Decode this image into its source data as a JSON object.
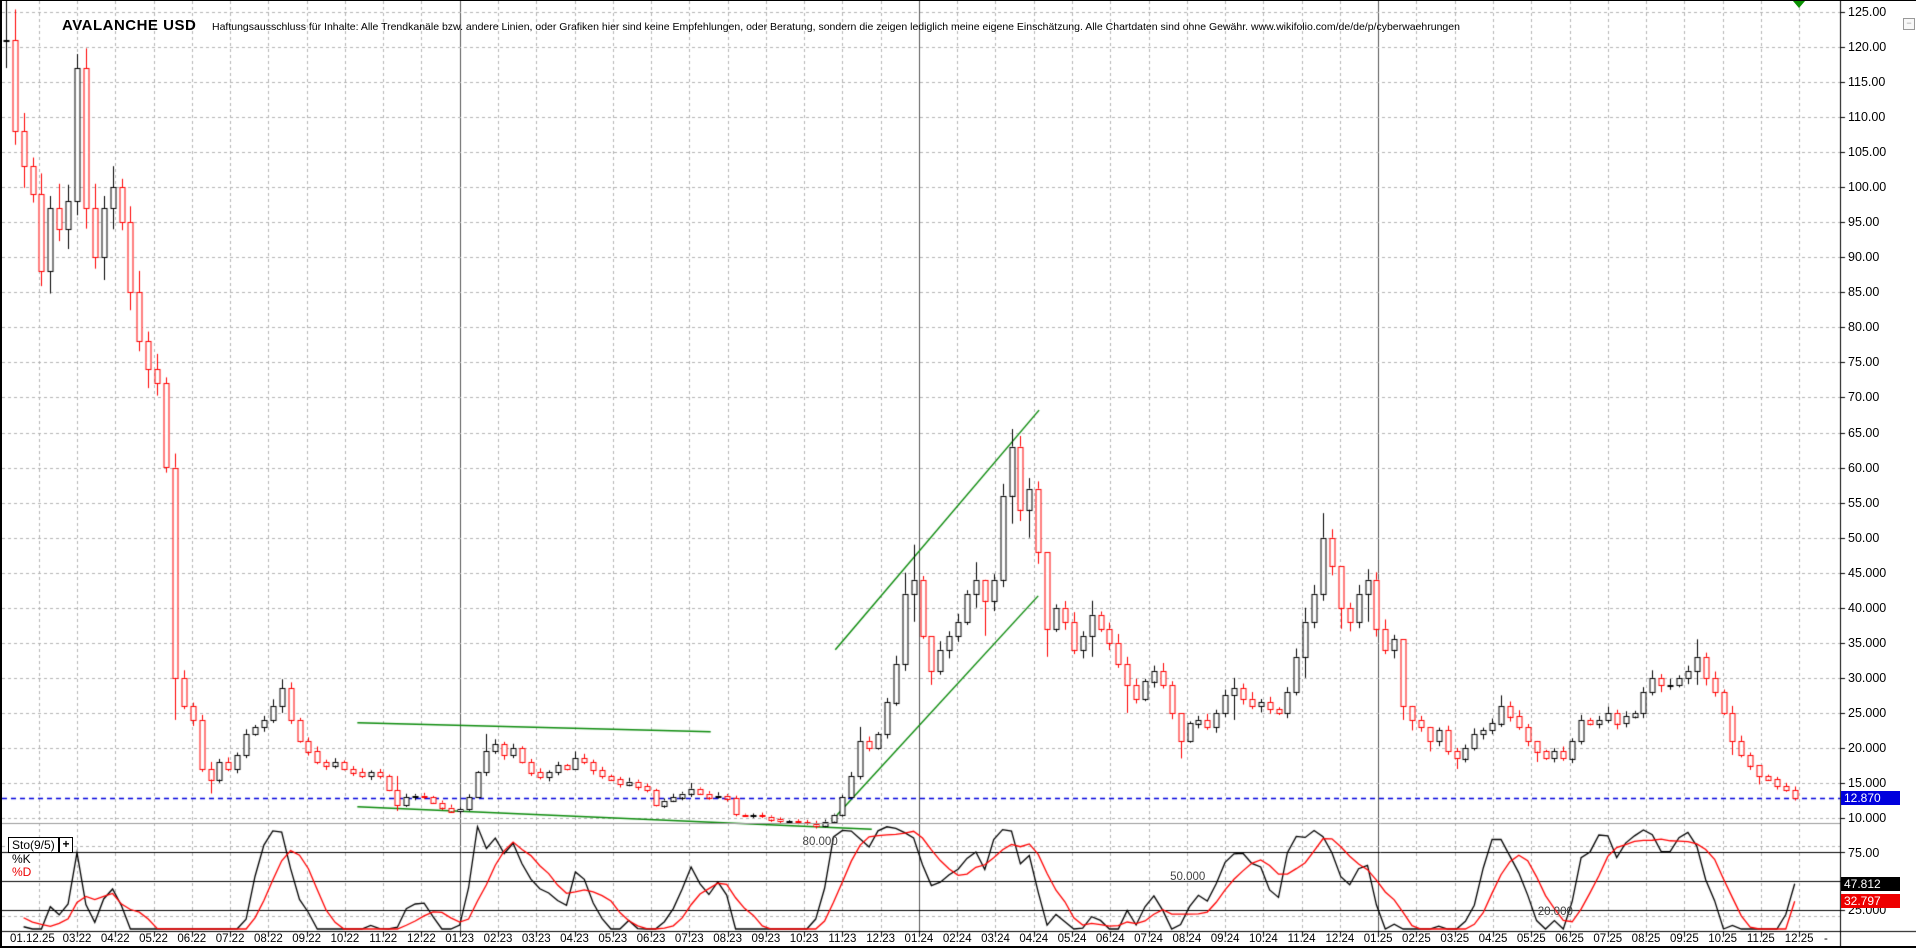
{
  "header": {
    "title": "AVALANCHE USD",
    "disclaimer": "Haftungsausschluss für Inhalte: Alle Trendkanäle bzw. andere Linien, oder Grafiken hier sind keine Empfehlungen, oder Beratung, sondern die zeigen lediglich meine eigene Einschätzung. Alle Chartdaten sind ohne Gewähr.  www.wikifolio.com/de/de/p/cyberwaehrungen"
  },
  "controls": {
    "collapse_button": "−"
  },
  "price_axis": {
    "tick_labels": [
      "125.00",
      "120.00",
      "115.00",
      "110.00",
      "105.00",
      "100.00",
      "95.00",
      "90.00",
      "85.00",
      "80.00",
      "75.00",
      "70.00",
      "65.00",
      "60.00",
      "55.00",
      "50.00",
      "45.000",
      "40.000",
      "35.000",
      "30.000",
      "25.000",
      "20.000",
      "15.000",
      "10.000"
    ],
    "tick_values": [
      125,
      120,
      115,
      110,
      105,
      100,
      95,
      90,
      85,
      80,
      75,
      70,
      65,
      60,
      55,
      50,
      45,
      40,
      35,
      30,
      25,
      20,
      15,
      10
    ],
    "last_price_label": "12.870"
  },
  "x_axis": {
    "first_label": "01.12.25",
    "month_labels": [
      "03.22",
      "04.22",
      "05.22",
      "06.22",
      "07.22",
      "08.22",
      "09.22",
      "10.22",
      "11.22",
      "12.22",
      "01.23",
      "02.23",
      "03.23",
      "04.23",
      "05.23",
      "06.23",
      "07.23",
      "08.23",
      "09.23",
      "10.23",
      "11.23",
      "12.23",
      "01.24",
      "02.24",
      "03.24",
      "04.24",
      "05.24",
      "06.24",
      "07.24",
      "08.24",
      "09.24",
      "10.24",
      "11.24",
      "12.24",
      "01.25",
      "02.25",
      "03.25",
      "04.25",
      "05.25",
      "06.25",
      "07.25",
      "08.25",
      "09.25",
      "10.25",
      "11.25",
      "12.25"
    ],
    "trailing_label": "-"
  },
  "indicator_panel": {
    "name": "Sto(9/5)",
    "add_button": "+",
    "k_label": "%K",
    "d_label": "%D",
    "k_value": "47.812",
    "d_value": "32.797",
    "upper_level_label": "75.00",
    "lower_level_label": "25.000",
    "level_annotations": [
      {
        "text": "80.000",
        "value": 80,
        "week": 83.5
      },
      {
        "text": "50.000",
        "value": 50,
        "week": 124.8
      },
      {
        "text": "20.000",
        "value": 20,
        "week": 166.1
      }
    ]
  },
  "colors": {
    "up": "#000000",
    "down": "#ff0000",
    "k_line": "#000000",
    "d_line": "#ff0000",
    "trendline": "#0a8a0a",
    "grid": "#b3b3b3",
    "year_grid": "#555555",
    "last_price_line": "#0000dd",
    "marker": "#089000"
  },
  "chart_data": {
    "type": "candlestick",
    "symbol": "AVALANCHE USD",
    "timeframe": "weekly",
    "title": "AVALANCHE USD",
    "ylim": [
      8,
      127
    ],
    "last_price": 12.87,
    "weeks_before_first_tick": 8,
    "weekly_candles": [
      [
        -8,
        121,
        128,
        117
      ],
      [
        -7,
        108
      ],
      [
        -6,
        103
      ],
      [
        -5,
        99
      ],
      [
        -4,
        88
      ],
      [
        -3,
        97
      ],
      [
        -2,
        94
      ],
      [
        -1,
        98
      ],
      [
        0,
        117,
        119,
        96
      ],
      [
        1,
        97
      ],
      [
        2,
        90
      ],
      [
        3,
        97
      ],
      [
        4,
        100,
        103,
        94
      ],
      [
        5,
        95
      ],
      [
        6,
        85
      ],
      [
        7,
        78
      ],
      [
        8,
        74
      ],
      [
        9,
        72
      ],
      [
        10,
        60
      ],
      [
        11,
        30,
        62,
        24
      ],
      [
        12,
        26
      ],
      [
        13,
        24
      ],
      [
        14,
        17
      ],
      [
        15,
        15.5,
        18,
        13.5
      ],
      [
        16,
        18
      ],
      [
        17,
        17
      ],
      [
        18,
        19
      ],
      [
        19,
        22
      ],
      [
        20,
        23
      ],
      [
        21,
        24
      ],
      [
        22,
        26
      ],
      [
        23,
        28.5,
        29.8,
        25
      ],
      [
        24,
        24
      ],
      [
        25,
        21
      ],
      [
        26,
        19.5
      ],
      [
        27,
        18
      ],
      [
        28,
        17.5
      ],
      [
        29,
        18
      ],
      [
        30,
        17
      ],
      [
        31,
        16.5
      ],
      [
        32,
        16
      ],
      [
        33,
        16.5
      ],
      [
        34,
        16
      ],
      [
        35,
        14
      ],
      [
        36,
        11.8,
        16,
        11
      ],
      [
        37,
        13
      ],
      [
        38,
        13.2
      ],
      [
        39,
        13
      ],
      [
        40,
        12.2
      ],
      [
        41,
        11.5
      ],
      [
        42,
        11
      ],
      [
        43,
        11.3
      ],
      [
        44,
        13
      ],
      [
        45,
        16.5
      ],
      [
        46,
        19.5,
        22,
        16
      ],
      [
        47,
        20.5
      ],
      [
        48,
        19
      ],
      [
        49,
        20
      ],
      [
        50,
        18
      ],
      [
        51,
        16.5
      ],
      [
        52,
        15.8
      ],
      [
        53,
        16.5
      ],
      [
        54,
        17.5
      ],
      [
        55,
        17
      ],
      [
        56,
        18.5,
        19.5,
        17
      ],
      [
        57,
        18
      ],
      [
        58,
        16.8
      ],
      [
        59,
        16
      ],
      [
        60,
        15.5
      ],
      [
        61,
        14.8
      ],
      [
        62,
        15.2
      ],
      [
        63,
        14.5
      ],
      [
        64,
        14
      ],
      [
        65,
        11.8
      ],
      [
        66,
        12.5
      ],
      [
        67,
        13
      ],
      [
        68,
        13.5
      ],
      [
        69,
        14.2,
        15,
        13
      ],
      [
        70,
        13.5
      ],
      [
        71,
        13
      ],
      [
        72,
        13.2
      ],
      [
        73,
        12.8
      ],
      [
        74,
        10.5
      ],
      [
        75,
        10.3
      ],
      [
        76,
        10.4
      ],
      [
        77,
        10.2
      ],
      [
        78,
        9.8
      ],
      [
        79,
        9.5
      ],
      [
        80,
        9.6
      ],
      [
        81,
        9.4
      ],
      [
        82,
        9.2
      ],
      [
        83,
        8.9,
        9.6,
        8.5
      ],
      [
        84,
        9.5
      ],
      [
        85,
        10.5
      ],
      [
        86,
        13
      ],
      [
        87,
        16
      ],
      [
        88,
        21,
        23,
        15.5
      ],
      [
        89,
        20
      ],
      [
        90,
        22
      ],
      [
        91,
        26.5
      ],
      [
        92,
        32
      ],
      [
        93,
        42,
        45,
        31
      ],
      [
        94,
        44,
        49,
        38
      ],
      [
        95,
        36
      ],
      [
        96,
        31,
        35,
        29
      ],
      [
        97,
        34
      ],
      [
        98,
        36
      ],
      [
        99,
        38
      ],
      [
        100,
        42
      ],
      [
        101,
        44,
        46.5,
        40
      ],
      [
        102,
        41,
        44,
        36
      ],
      [
        103,
        44
      ],
      [
        104,
        56
      ],
      [
        105,
        63,
        65.5,
        52
      ],
      [
        106,
        54
      ],
      [
        107,
        57,
        58.5,
        50
      ],
      [
        108,
        48
      ],
      [
        109,
        37,
        42,
        33
      ],
      [
        110,
        40
      ],
      [
        111,
        38
      ],
      [
        112,
        34
      ],
      [
        113,
        36
      ],
      [
        114,
        39,
        41,
        33
      ],
      [
        115,
        37
      ],
      [
        116,
        35
      ],
      [
        117,
        32
      ],
      [
        118,
        29,
        33,
        25
      ],
      [
        119,
        27
      ],
      [
        120,
        29.5
      ],
      [
        121,
        31
      ],
      [
        122,
        29
      ],
      [
        123,
        25
      ],
      [
        124,
        21,
        24,
        18.5
      ],
      [
        125,
        23.5
      ],
      [
        126,
        24
      ],
      [
        127,
        23
      ],
      [
        128,
        25
      ],
      [
        129,
        27.5
      ],
      [
        130,
        28.5,
        30,
        24
      ],
      [
        131,
        27
      ],
      [
        132,
        26
      ],
      [
        133,
        26.5
      ],
      [
        134,
        25.5
      ],
      [
        135,
        25
      ],
      [
        136,
        28
      ],
      [
        137,
        33
      ],
      [
        138,
        38,
        40,
        30
      ],
      [
        139,
        42
      ],
      [
        140,
        50,
        53.5,
        41
      ],
      [
        141,
        46
      ],
      [
        142,
        40,
        44,
        37
      ],
      [
        143,
        38
      ],
      [
        144,
        42
      ],
      [
        145,
        44,
        45.5,
        38
      ],
      [
        146,
        37
      ],
      [
        147,
        34
      ],
      [
        148,
        35.5
      ],
      [
        149,
        26,
        34,
        24
      ],
      [
        150,
        24,
        26,
        22.5
      ],
      [
        151,
        23
      ],
      [
        152,
        21,
        23,
        19.5
      ],
      [
        153,
        22.5
      ],
      [
        154,
        19.5
      ],
      [
        155,
        18.5,
        20,
        17
      ],
      [
        156,
        20
      ],
      [
        157,
        22
      ],
      [
        158,
        22.5
      ],
      [
        159,
        23.5
      ],
      [
        160,
        26,
        27.5,
        23
      ],
      [
        161,
        24.5
      ],
      [
        162,
        23
      ],
      [
        163,
        21
      ],
      [
        164,
        19.5,
        21,
        18
      ],
      [
        165,
        18.5
      ],
      [
        166,
        19.5
      ],
      [
        167,
        18.5
      ],
      [
        168,
        21
      ],
      [
        169,
        24
      ],
      [
        170,
        23.5
      ],
      [
        171,
        24
      ],
      [
        172,
        25
      ],
      [
        173,
        23.5
      ],
      [
        174,
        24.5
      ],
      [
        175,
        25
      ],
      [
        176,
        28
      ],
      [
        177,
        30
      ],
      [
        178,
        29
      ],
      [
        179,
        29
      ],
      [
        180,
        30
      ],
      [
        181,
        31
      ],
      [
        182,
        33,
        35.5,
        29
      ],
      [
        183,
        30
      ],
      [
        184,
        28
      ],
      [
        185,
        25
      ],
      [
        186,
        21,
        26,
        19
      ],
      [
        187,
        19
      ],
      [
        188,
        17.5
      ],
      [
        189,
        16,
        17.5,
        14.8
      ],
      [
        190,
        15.5
      ],
      [
        191,
        14.5
      ],
      [
        192,
        14
      ],
      [
        193,
        12.87,
        14.5,
        12.5
      ]
    ],
    "stochastic": {
      "name": "Sto(9/5)",
      "period": 9,
      "smoothing": 5,
      "k_last": 47.812,
      "d_last": 32.797
    },
    "trendlines": [
      {
        "w1": 85.2,
        "p1": 34.0,
        "w2": 108.1,
        "p2": 68.2
      },
      {
        "w1": 84.8,
        "p1": 9.6,
        "w2": 108.0,
        "p2": 41.7
      },
      {
        "w1": 31.5,
        "p1": 23.6,
        "w2": 71.2,
        "p2": 22.3
      },
      {
        "w1": 31.5,
        "p1": 11.6,
        "w2": 89.3,
        "p2": 8.4
      }
    ]
  }
}
